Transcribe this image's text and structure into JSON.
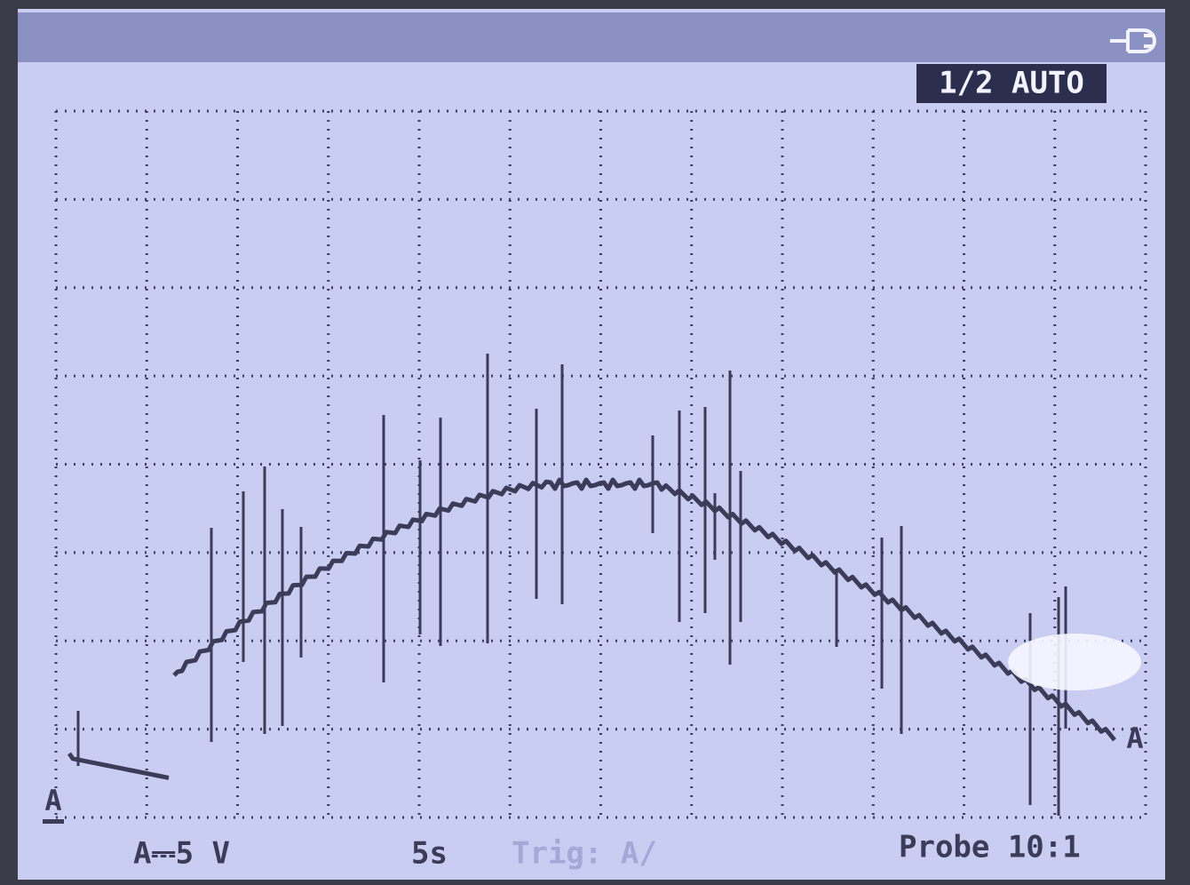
{
  "status": {
    "mode": "1/2 AUTO"
  },
  "markers": {
    "left": "A",
    "right": "A"
  },
  "footer": {
    "scale": "A⎓5 V",
    "timebase": "5s",
    "trigger": "Trig: A/",
    "probe": "Probe 10:1"
  }
}
